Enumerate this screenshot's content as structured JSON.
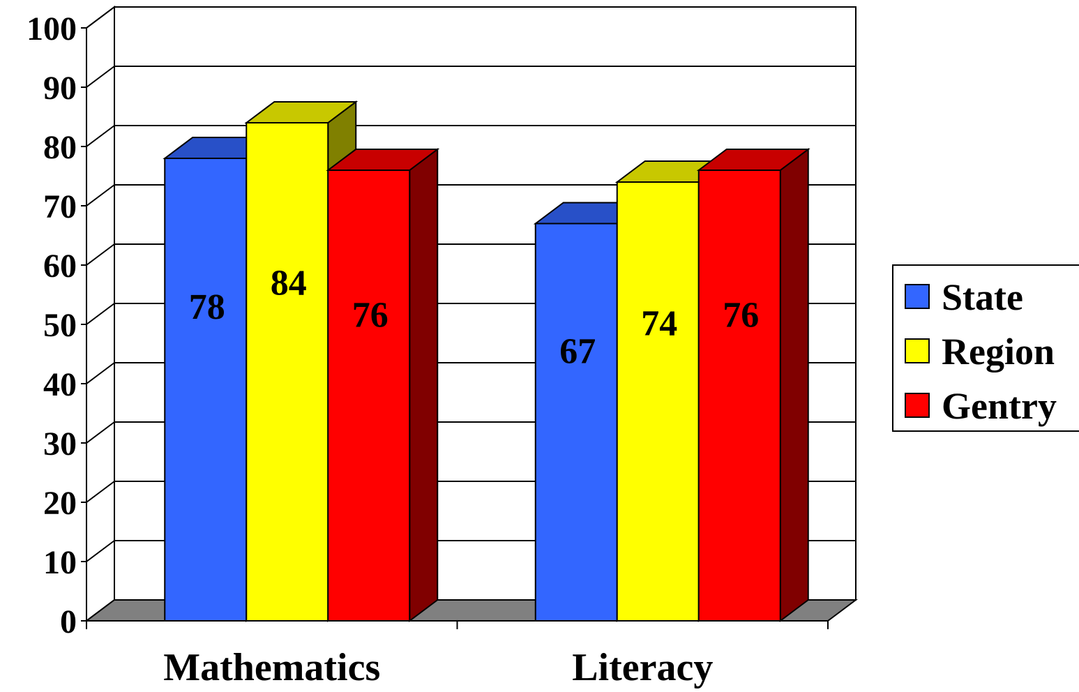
{
  "chart_data": {
    "type": "bar",
    "title": "",
    "xlabel": "",
    "ylabel": "",
    "ylim": [
      0,
      100
    ],
    "y_ticks": [
      0,
      10,
      20,
      30,
      40,
      50,
      60,
      70,
      80,
      90,
      100
    ],
    "categories": [
      "Mathematics",
      "Literacy"
    ],
    "series": [
      {
        "name": "State",
        "values": [
          78,
          67
        ],
        "color": "#3366FF",
        "top_color": "#2850C8",
        "side_color": "#1E3C9A"
      },
      {
        "name": "Region",
        "values": [
          84,
          74
        ],
        "color": "#FFFF00",
        "top_color": "#C8C800",
        "side_color": "#808000"
      },
      {
        "name": "Gentry",
        "values": [
          76,
          76
        ],
        "color": "#FF0000",
        "top_color": "#C80000",
        "side_color": "#800000"
      }
    ],
    "grid": true,
    "style": "3d-clustered-column",
    "floor_color": "#808080",
    "legend_position": "right"
  }
}
